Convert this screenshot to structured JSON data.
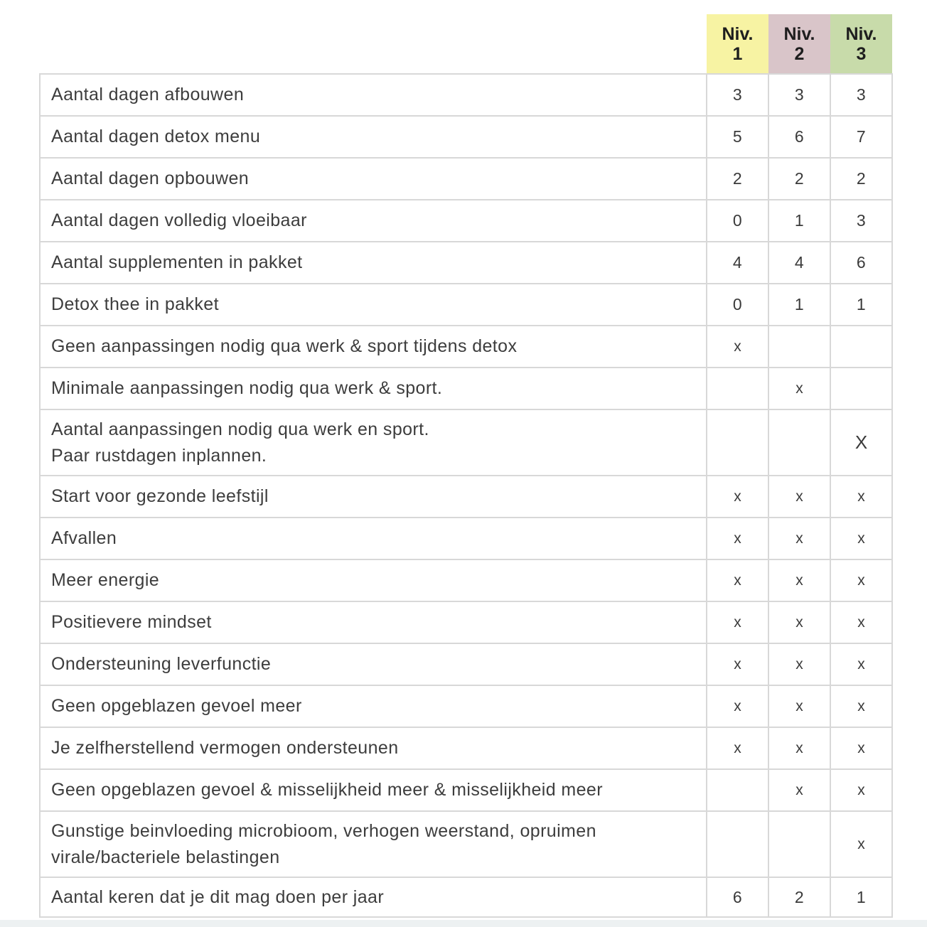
{
  "page": {
    "background": "#ffffff",
    "bottom_strip_color": "#edf1f2",
    "border_color": "#d8d8d8"
  },
  "table": {
    "header": [
      {
        "label_line1": "Niv.",
        "label_line2": "1",
        "bg": "#f7f3a3"
      },
      {
        "label_line1": "Niv.",
        "label_line2": "2",
        "bg": "#d9c5c9"
      },
      {
        "label_line1": "Niv.",
        "label_line2": "3",
        "bg": "#c8dbaa"
      }
    ],
    "rows": [
      {
        "label": "Aantal dagen afbouwen",
        "values": [
          "3",
          "3",
          "3"
        ],
        "size": "single"
      },
      {
        "label": "Aantal dagen detox menu",
        "values": [
          "5",
          "6",
          "7"
        ],
        "size": "single"
      },
      {
        "label": "Aantal dagen opbouwen",
        "values": [
          "2",
          "2",
          "2"
        ],
        "size": "single"
      },
      {
        "label": "Aantal dagen volledig vloeibaar",
        "values": [
          "0",
          "1",
          "3"
        ],
        "size": "single"
      },
      {
        "label": "Aantal supplementen in pakket",
        "values": [
          "4",
          "4",
          "6"
        ],
        "size": "single"
      },
      {
        "label": "Detox thee in pakket",
        "values": [
          "0",
          "1",
          "1"
        ],
        "size": "single"
      },
      {
        "label": "Geen aanpassingen nodig qua werk & sport tijdens detox",
        "values": [
          "x",
          "",
          ""
        ],
        "size": "single"
      },
      {
        "label": "Minimale aanpassingen nodig qua werk & sport.",
        "values": [
          "",
          "x",
          ""
        ],
        "size": "single"
      },
      {
        "label": "Aantal aanpassingen nodig qua werk en sport.\nPaar rustdagen inplannen.",
        "values": [
          "",
          "",
          "X"
        ],
        "size": "tall"
      },
      {
        "label": "Start voor gezonde leefstijl",
        "values": [
          "x",
          "x",
          "x"
        ],
        "size": "single"
      },
      {
        "label": "Afvallen",
        "values": [
          "x",
          "x",
          "x"
        ],
        "size": "single"
      },
      {
        "label": "Meer energie",
        "values": [
          "x",
          "x",
          "x"
        ],
        "size": "single"
      },
      {
        "label": "Positievere mindset",
        "values": [
          "x",
          "x",
          "x"
        ],
        "size": "single"
      },
      {
        "label": "Ondersteuning leverfunctie",
        "values": [
          "x",
          "x",
          "x"
        ],
        "size": "single"
      },
      {
        "label": "Geen opgeblazen gevoel meer",
        "values": [
          "x",
          "x",
          "x"
        ],
        "size": "single"
      },
      {
        "label": "Je zelfherstellend vermogen ondersteunen",
        "values": [
          "x",
          "x",
          "x"
        ],
        "size": "single"
      },
      {
        "label": "Geen opgeblazen gevoel & misselijkheid meer & misselijkheid meer",
        "values": [
          "",
          "x",
          "x"
        ],
        "size": "single"
      },
      {
        "label": "Gunstige beinvloeding microbioom, verhogen weerstand, opruimen\nvirale/bacteriele belastingen",
        "values": [
          "",
          "",
          "x"
        ],
        "size": "tall"
      },
      {
        "label": "Aantal keren dat je dit mag doen per jaar",
        "values": [
          "6",
          "2",
          "1"
        ],
        "size": "last"
      }
    ]
  }
}
